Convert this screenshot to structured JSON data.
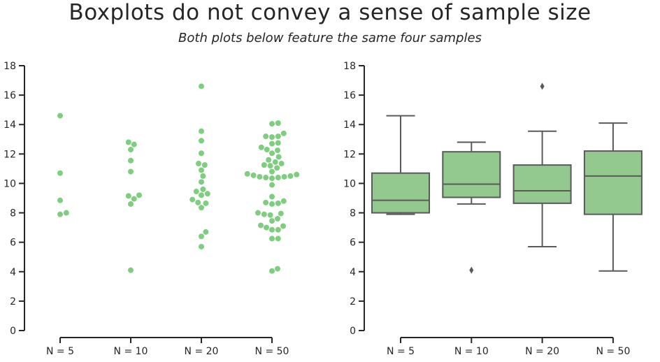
{
  "title": "Boxplots do not convey a sense of sample size",
  "subtitle": "Both plots below feature the same four samples",
  "colors": {
    "point": "#7fce7f",
    "box_fill": "#93c98e",
    "box_edge": "#5a5a5a",
    "axis": "#262626"
  },
  "chart_data": [
    {
      "type": "scatter",
      "categories": [
        "N = 5",
        "N = 10",
        "N = 20",
        "N = 50"
      ],
      "ylim": [
        0,
        18
      ],
      "yticks": [
        0,
        2,
        4,
        6,
        8,
        10,
        12,
        14,
        16,
        18
      ],
      "grid": false,
      "points": [
        [
          14.6,
          10.7,
          8.85,
          8.0,
          7.9
        ],
        [
          12.8,
          12.65,
          12.3,
          11.55,
          10.8,
          9.2,
          9.15,
          8.95,
          8.6,
          4.1
        ],
        [
          16.6,
          13.55,
          12.9,
          12.05,
          11.35,
          11.25,
          10.9,
          10.5,
          10.1,
          9.6,
          9.45,
          9.3,
          9.2,
          8.9,
          8.7,
          8.65,
          8.35,
          6.7,
          6.4,
          5.7
        ],
        [
          14.1,
          14.05,
          13.4,
          13.2,
          13.2,
          13.15,
          12.75,
          12.7,
          12.45,
          12.3,
          12.25,
          12.05,
          11.8,
          11.6,
          11.45,
          11.35,
          11.25,
          11.2,
          11.05,
          10.8,
          10.65,
          10.6,
          10.55,
          10.5,
          10.45,
          10.45,
          10.4,
          10.4,
          10.35,
          9.9,
          9.1,
          8.8,
          8.7,
          8.65,
          8.6,
          8.0,
          7.95,
          7.9,
          7.85,
          7.6,
          7.45,
          7.15,
          7.1,
          7.0,
          6.85,
          6.85,
          6.25,
          6.25,
          4.2,
          4.05
        ]
      ]
    },
    {
      "type": "box",
      "categories": [
        "N = 5",
        "N = 10",
        "N = 20",
        "N = 50"
      ],
      "ylim": [
        0,
        18
      ],
      "yticks": [
        0,
        2,
        4,
        6,
        8,
        10,
        12,
        14,
        16,
        18
      ],
      "grid": false,
      "boxes": [
        {
          "whisker_low": 7.9,
          "q1": 8.0,
          "median": 8.85,
          "q3": 10.7,
          "whisker_high": 14.6,
          "outliers": []
        },
        {
          "whisker_low": 8.6,
          "q1": 9.05,
          "median": 9.95,
          "q3": 12.15,
          "whisker_high": 12.8,
          "outliers": [
            4.1
          ]
        },
        {
          "whisker_low": 5.7,
          "q1": 8.65,
          "median": 9.5,
          "q3": 11.25,
          "whisker_high": 13.55,
          "outliers": [
            16.6
          ]
        },
        {
          "whisker_low": 4.05,
          "q1": 7.9,
          "median": 10.5,
          "q3": 12.2,
          "whisker_high": 14.1,
          "outliers": []
        }
      ]
    }
  ]
}
